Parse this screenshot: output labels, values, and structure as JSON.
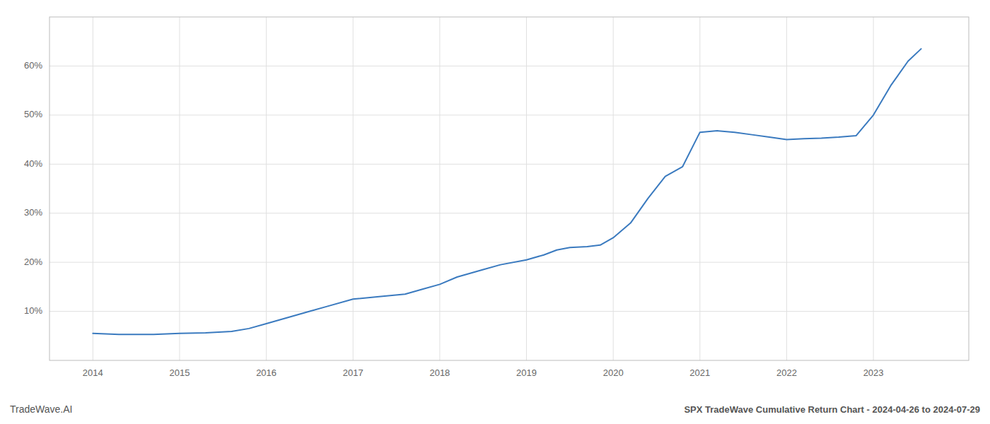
{
  "chart_data": {
    "type": "line",
    "title": "SPX TradeWave Cumulative Return Chart - 2024-04-26 to 2024-07-29",
    "annotations": [
      "TradeWave.AI"
    ],
    "x": [
      2014.0,
      2014.3,
      2014.7,
      2015.0,
      2015.3,
      2015.6,
      2015.8,
      2016.0,
      2016.3,
      2016.5,
      2016.7,
      2017.0,
      2017.3,
      2017.6,
      2017.8,
      2018.0,
      2018.2,
      2018.5,
      2018.7,
      2019.0,
      2019.2,
      2019.35,
      2019.5,
      2019.7,
      2019.85,
      2020.0,
      2020.2,
      2020.4,
      2020.6,
      2020.8,
      2021.0,
      2021.2,
      2021.4,
      2021.6,
      2021.8,
      2022.0,
      2022.2,
      2022.4,
      2022.6,
      2022.8,
      2023.0,
      2023.2,
      2023.4,
      2023.55
    ],
    "values": [
      5.5,
      5.3,
      5.3,
      5.5,
      5.6,
      5.9,
      6.5,
      7.5,
      9.0,
      10.0,
      11.0,
      12.5,
      13.0,
      13.5,
      14.5,
      15.5,
      17.0,
      18.5,
      19.5,
      20.5,
      21.5,
      22.5,
      23.0,
      23.2,
      23.5,
      25.0,
      28.0,
      33.0,
      37.5,
      39.5,
      46.5,
      46.8,
      46.5,
      46.0,
      45.5,
      45.0,
      45.2,
      45.3,
      45.5,
      45.8,
      50.0,
      56.0,
      61.0,
      63.5
    ],
    "color": "#3a7abf",
    "xlim": [
      2013.5,
      2024.1
    ],
    "ylim": [
      0,
      70
    ],
    "xticks": [
      2014,
      2015,
      2016,
      2017,
      2018,
      2019,
      2020,
      2021,
      2022,
      2023
    ],
    "yticks": [
      {
        "value": 10,
        "label": "10%"
      },
      {
        "value": 20,
        "label": "20%"
      },
      {
        "value": 30,
        "label": "30%"
      },
      {
        "value": 40,
        "label": "40%"
      },
      {
        "value": 50,
        "label": "50%"
      },
      {
        "value": 60,
        "label": "60%"
      }
    ],
    "grid": true
  }
}
